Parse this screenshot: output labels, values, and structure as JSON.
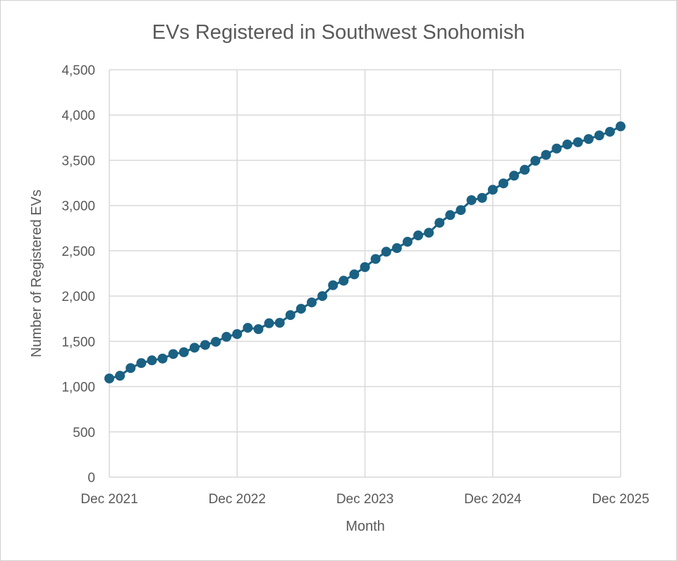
{
  "chart_data": {
    "type": "line",
    "title": "EVs Registered in Southwest Snohomish",
    "xlabel": "Month",
    "ylabel": "Number of Registered EVs",
    "x_ticks": [
      "Dec 2021",
      "Dec 2022",
      "Dec 2023",
      "Dec 2024",
      "Dec 2025"
    ],
    "y_ticks": [
      "0",
      "500",
      "1,000",
      "1,500",
      "2,000",
      "2,500",
      "3,000",
      "3,500",
      "4,000",
      "4,500"
    ],
    "ylim": [
      0,
      4500
    ],
    "x_range": [
      "2021-12",
      "2025-12"
    ],
    "grid": true,
    "markers": true,
    "color": "#1b6183",
    "x": [
      "2021-12",
      "2022-01",
      "2022-02",
      "2022-03",
      "2022-04",
      "2022-05",
      "2022-06",
      "2022-07",
      "2022-08",
      "2022-09",
      "2022-10",
      "2022-11",
      "2022-12",
      "2023-01",
      "2023-02",
      "2023-03",
      "2023-04",
      "2023-05",
      "2023-06",
      "2023-07",
      "2023-08",
      "2023-09",
      "2023-10",
      "2023-11",
      "2023-12",
      "2024-01",
      "2024-02",
      "2024-03",
      "2024-04",
      "2024-05",
      "2024-06",
      "2024-07",
      "2024-08",
      "2024-09",
      "2024-10",
      "2024-11",
      "2024-12",
      "2025-01",
      "2025-02",
      "2025-03",
      "2025-04",
      "2025-05",
      "2025-06",
      "2025-07",
      "2025-08",
      "2025-09",
      "2025-10",
      "2025-11",
      "2025-12"
    ],
    "values": [
      1090,
      1120,
      1205,
      1260,
      1290,
      1310,
      1360,
      1380,
      1430,
      1460,
      1495,
      1550,
      1580,
      1650,
      1635,
      1700,
      1705,
      1790,
      1860,
      1930,
      2000,
      2120,
      2170,
      2240,
      2320,
      2410,
      2490,
      2530,
      2600,
      2670,
      2700,
      2810,
      2895,
      2950,
      3060,
      3085,
      3175,
      3245,
      3330,
      3395,
      3495,
      3560,
      3630,
      3675,
      3700,
      3735,
      3775,
      3815,
      3875
    ]
  }
}
